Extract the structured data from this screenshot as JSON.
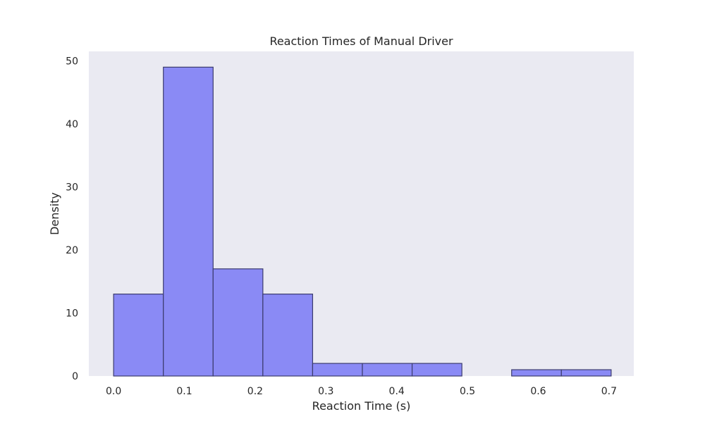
{
  "chart_data": {
    "type": "bar",
    "subtype": "histogram",
    "title": "Reaction Times of Manual Driver",
    "xlabel": "Reaction Time (s)",
    "ylabel": "Density",
    "xlim": [
      -0.035,
      0.735
    ],
    "ylim": [
      0,
      51.5
    ],
    "xticks": [
      0.0,
      0.1,
      0.2,
      0.3,
      0.4,
      0.5,
      0.6,
      0.7
    ],
    "xtick_labels": [
      "0.0",
      "0.1",
      "0.2",
      "0.3",
      "0.4",
      "0.5",
      "0.6",
      "0.7"
    ],
    "yticks": [
      0,
      10,
      20,
      30,
      40,
      50
    ],
    "ytick_labels": [
      "0",
      "10",
      "20",
      "30",
      "40",
      "50"
    ],
    "bins": [
      {
        "start": 0.0,
        "end": 0.0703,
        "value": 13
      },
      {
        "start": 0.0703,
        "end": 0.1406,
        "value": 49
      },
      {
        "start": 0.1406,
        "end": 0.2109,
        "value": 17
      },
      {
        "start": 0.2109,
        "end": 0.2812,
        "value": 13
      },
      {
        "start": 0.2812,
        "end": 0.3515,
        "value": 2
      },
      {
        "start": 0.3515,
        "end": 0.4218,
        "value": 2
      },
      {
        "start": 0.4218,
        "end": 0.4921,
        "value": 2
      },
      {
        "start": 0.4921,
        "end": 0.5624,
        "value": 0
      },
      {
        "start": 0.5624,
        "end": 0.6327,
        "value": 1
      },
      {
        "start": 0.6327,
        "end": 0.703,
        "value": 1
      }
    ],
    "grid": false,
    "colors": {
      "bar_fill": "#8a8af5",
      "bar_edge": "#3c3c6e",
      "plot_background": "#eaeaf2"
    }
  }
}
